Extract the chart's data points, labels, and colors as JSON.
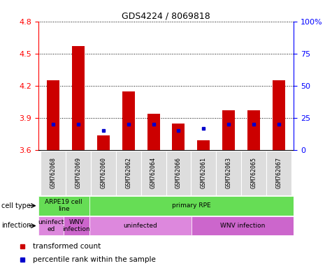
{
  "title": "GDS4224 / 8069818",
  "samples": [
    "GSM762068",
    "GSM762069",
    "GSM762060",
    "GSM762062",
    "GSM762064",
    "GSM762066",
    "GSM762061",
    "GSM762063",
    "GSM762065",
    "GSM762067"
  ],
  "transformed_counts": [
    4.25,
    4.57,
    3.74,
    4.15,
    3.94,
    3.85,
    3.69,
    3.97,
    3.97,
    4.25
  ],
  "percentile_ranks": [
    20,
    20,
    15,
    20,
    20,
    15,
    17,
    20,
    20,
    20
  ],
  "ylim": [
    3.6,
    4.8
  ],
  "y_ticks": [
    3.6,
    3.9,
    4.2,
    4.5,
    4.8
  ],
  "y2_ticks": [
    0,
    25,
    50,
    75,
    100
  ],
  "bar_color": "#cc0000",
  "dot_color": "#0000cc",
  "bar_width": 0.5,
  "ct_groups": [
    {
      "label": "ARPE19 cell\nline",
      "start": 0,
      "end": 2,
      "color": "#66dd55"
    },
    {
      "label": "primary RPE",
      "start": 2,
      "end": 10,
      "color": "#66dd55"
    }
  ],
  "inf_groups": [
    {
      "label": "uninfect\ned",
      "start": 0,
      "end": 1,
      "color": "#dd88dd"
    },
    {
      "label": "WNV\ninfection",
      "start": 1,
      "end": 2,
      "color": "#cc66cc"
    },
    {
      "label": "uninfected",
      "start": 2,
      "end": 6,
      "color": "#dd88dd"
    },
    {
      "label": "WNV infection",
      "start": 6,
      "end": 10,
      "color": "#cc66cc"
    }
  ],
  "legend_items": [
    {
      "color": "#cc0000",
      "label": "transformed count"
    },
    {
      "color": "#0000cc",
      "label": "percentile rank within the sample"
    }
  ]
}
